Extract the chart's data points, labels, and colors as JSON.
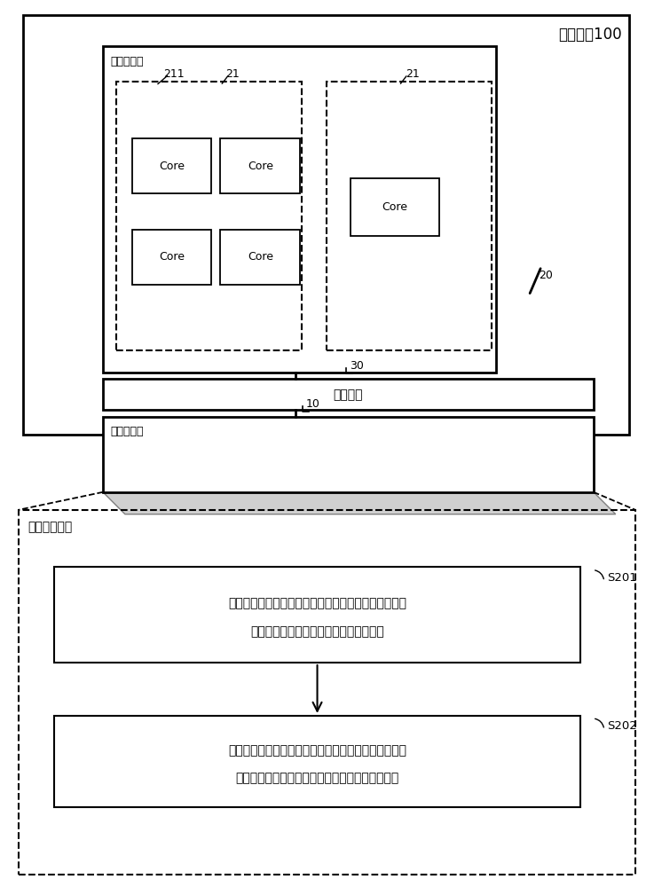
{
  "bg_color": "#ffffff",
  "title": "片上系统100",
  "second_proc_label": "第二处理器",
  "noc_label": "片上网络",
  "first_proc_label": "第一处理器",
  "flow_label": "频率控制方法",
  "core_label": "Core",
  "label_211": "211",
  "label_21a": "21",
  "label_21b": "21",
  "label_20": "20",
  "label_30": "30",
  "label_10": "10",
  "label_s201": "S201",
  "label_s202": "S202",
  "step1_line1": "响应于目标中断，从所述共享内存中读取调频模式参数",
  "step1_line2": "，并基于所述调频模式参数配置调频模式",
  "step2_line1": "在所述调频模式为与所述硬件调频参数对应的硬件调频",
  "step2_line2": "模式时，响应于第一调节指令，执行硬件调频过程"
}
